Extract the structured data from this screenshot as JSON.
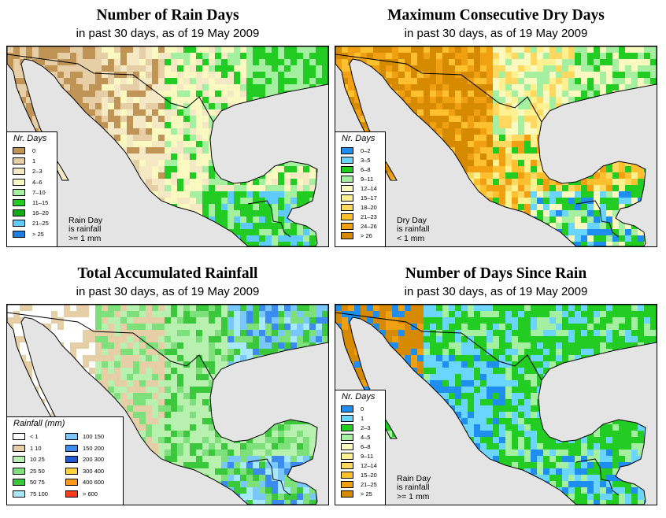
{
  "colors": {
    "bg_gray": "#e4e4e4",
    "coast_line": "#000000"
  },
  "panels": [
    {
      "id": "rain_days",
      "title": "Number of Rain Days",
      "subtitle": "in past 30 days, as of  19 May 2009",
      "legend": {
        "title": "Nr. Days",
        "items": [
          {
            "label": "0",
            "color": "#c09455"
          },
          {
            "label": "1",
            "color": "#e6cfa7"
          },
          {
            "label": "2–3",
            "color": "#f5e8c4"
          },
          {
            "label": "4–6",
            "color": "#fafac0"
          },
          {
            "label": "7–10",
            "color": "#a4f0a0"
          },
          {
            "label": "11–15",
            "color": "#22cc22"
          },
          {
            "label": "16–20",
            "color": "#14aa14"
          },
          {
            "label": "21–25",
            "color": "#5fcaff"
          },
          {
            "label": "> 25",
            "color": "#1e7ee0"
          }
        ]
      },
      "note": [
        "Rain Day",
        "is rainfall",
        ">= 1 mm"
      ]
    },
    {
      "id": "dry_days",
      "title": "Maximum Consecutive Dry Days",
      "subtitle": "in past 30 days, as of  19 May 2009",
      "legend": {
        "title": "Nr. Days",
        "items": [
          {
            "label": "0–2",
            "color": "#1e8ef0"
          },
          {
            "label": "3–5",
            "color": "#6ad6ff"
          },
          {
            "label": "6–8",
            "color": "#22cc22"
          },
          {
            "label": "9–11",
            "color": "#a4f0a0"
          },
          {
            "label": "12–14",
            "color": "#fafac0"
          },
          {
            "label": "15–17",
            "color": "#fff090"
          },
          {
            "label": "18–20",
            "color": "#ffd860"
          },
          {
            "label": "21–23",
            "color": "#ffc030"
          },
          {
            "label": "24–26",
            "color": "#f0a010"
          },
          {
            "label": "> 26",
            "color": "#d68a00"
          }
        ]
      },
      "note": [
        "Dry Day",
        "is rainfall",
        "< 1 mm"
      ]
    },
    {
      "id": "accum_rain",
      "title": "Total Accumulated Rainfall",
      "subtitle": "in past 30 days, as of  19 May 2009",
      "legend": {
        "title": "Rainfall (mm)",
        "items": [
          {
            "label": "< 1",
            "color": "#ffffff"
          },
          {
            "label": "1   10",
            "color": "#e6cfa7"
          },
          {
            "label": "10   25",
            "color": "#b8f0b0"
          },
          {
            "label": "25   50",
            "color": "#7ee07a"
          },
          {
            "label": "50   75",
            "color": "#3cc83c"
          },
          {
            "label": "75  100",
            "color": "#a8e8ff"
          },
          {
            "label": "100  150",
            "color": "#78c8ff"
          },
          {
            "label": "150  200",
            "color": "#3c8cf0"
          },
          {
            "label": "200  300",
            "color": "#1e5ad2"
          },
          {
            "label": "300  400",
            "color": "#ffd23c"
          },
          {
            "label": "400  600",
            "color": "#ff9a1e"
          },
          {
            "label": "> 600",
            "color": "#ff3c14"
          }
        ]
      }
    },
    {
      "id": "days_since",
      "title": "Number of Days Since Rain",
      "subtitle": "in past 30 days, as of  19 May 2009",
      "legend": {
        "title": "Nr. Days",
        "items": [
          {
            "label": "0",
            "color": "#1e8ef0"
          },
          {
            "label": "1",
            "color": "#6ad6ff"
          },
          {
            "label": "2–3",
            "color": "#22cc22"
          },
          {
            "label": "4–5",
            "color": "#a4f0a0"
          },
          {
            "label": "6–8",
            "color": "#fafac0"
          },
          {
            "label": "9–11",
            "color": "#fff090"
          },
          {
            "label": "12–14",
            "color": "#ffd860"
          },
          {
            "label": "15–20",
            "color": "#ffc030"
          },
          {
            "label": "21–25",
            "color": "#f0a010"
          },
          {
            "label": "> 25",
            "color": "#d68a00"
          }
        ]
      },
      "note": [
        "Rain Day",
        "is rainfall",
        ">= 1 mm"
      ]
    }
  ]
}
